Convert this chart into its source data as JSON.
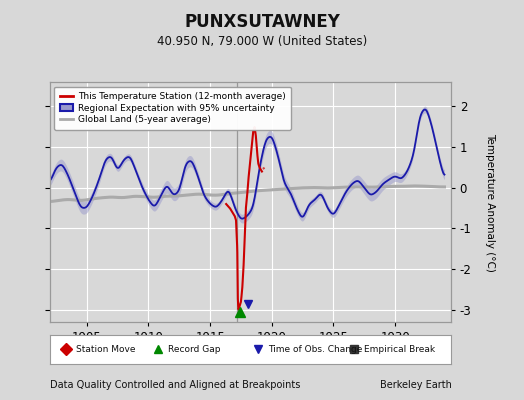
{
  "title": "PUNXSUTAWNEY",
  "subtitle": "40.950 N, 79.000 W (United States)",
  "ylabel": "Temperature Anomaly (°C)",
  "xlabel_bottom_left": "Data Quality Controlled and Aligned at Breakpoints",
  "xlabel_bottom_right": "Berkeley Earth",
  "xmin": 1902.0,
  "xmax": 1934.5,
  "ymin": -3.3,
  "ymax": 2.6,
  "yticks": [
    -3,
    -2,
    -1,
    0,
    1,
    2
  ],
  "xticks": [
    1905,
    1910,
    1915,
    1920,
    1925,
    1930
  ],
  "bg_color": "#d8d8d8",
  "plot_bg_color": "#d8d8d8",
  "grid_color": "#ffffff",
  "red_line_color": "#cc0000",
  "blue_line_color": "#1a1aaa",
  "blue_fill_color": "#9999cc",
  "gray_line_color": "#aaaaaa",
  "vertical_line_x": 1917.2,
  "vertical_line_color": "#888888",
  "green_triangle_x": 1917.4,
  "green_triangle_color": "#008800",
  "blue_triangle_x": 1918.1,
  "blue_triangle_color": "#1a1aaa",
  "legend_items": [
    {
      "label": "This Temperature Station (12-month average)",
      "color": "#cc0000",
      "type": "line"
    },
    {
      "label": "Regional Expectation with 95% uncertainty",
      "color": "#1a1aaa",
      "type": "fill"
    },
    {
      "label": "Global Land (5-year average)",
      "color": "#aaaaaa",
      "type": "line"
    }
  ],
  "marker_legend": [
    {
      "label": "Station Move",
      "color": "#cc0000",
      "marker": "D"
    },
    {
      "label": "Record Gap",
      "color": "#008800",
      "marker": "^"
    },
    {
      "label": "Time of Obs. Change",
      "color": "#1a1aaa",
      "marker": "v"
    },
    {
      "label": "Empirical Break",
      "color": "#333333",
      "marker": "s"
    }
  ]
}
